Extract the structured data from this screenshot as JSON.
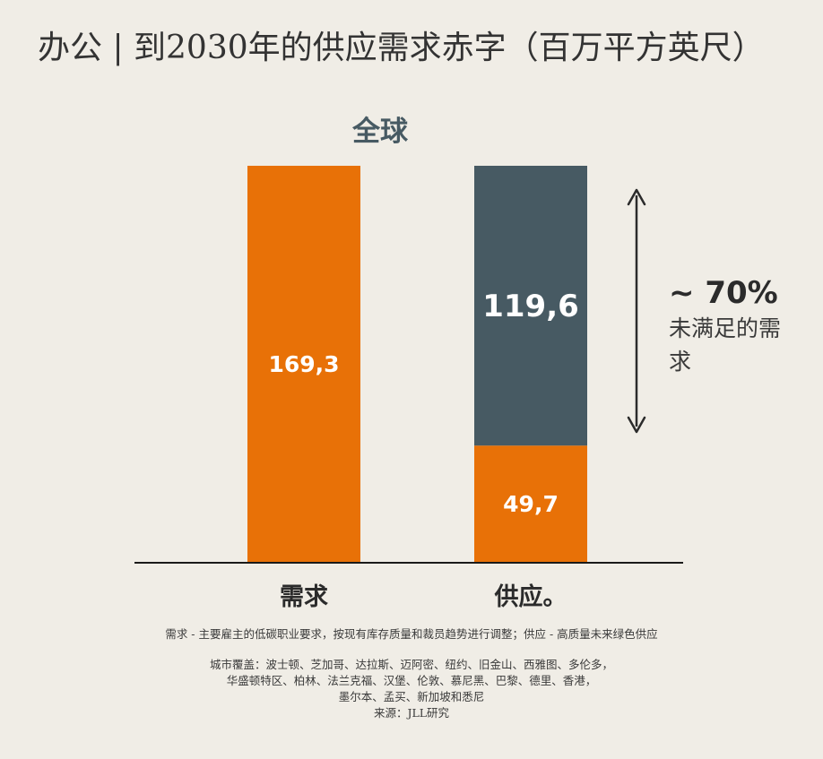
{
  "title": "办公 | 到2030年的供应需求赤字（百万平方英尺）",
  "chart_data": {
    "type": "bar",
    "subtitle": "全球",
    "categories": [
      "需求",
      "供应。"
    ],
    "series": [
      {
        "name": "",
        "values": [
          169.3,
          49.7
        ],
        "labels": [
          "169,3",
          "49,7"
        ],
        "color": "#e87107"
      },
      {
        "name": "",
        "values": [
          0,
          119.6
        ],
        "labels": [
          "",
          "119,6"
        ],
        "color": "#475a63"
      }
    ],
    "ylim": [
      0,
      169.3
    ],
    "grid": false,
    "annotation": {
      "value": "~ 70%",
      "text": "未满足的需求"
    }
  },
  "footnote": "需求 - 主要雇主的低碳职业要求，按现有库存质量和裁员趋势进行调整；供应 - 高质量未来绿色供应",
  "coverage_lines": [
    "城市覆盖：波士顿、芝加哥、达拉斯、迈阿密、纽约、旧金山、西雅图、多伦多，",
    "华盛顿特区、柏林、法兰克福、汉堡、伦敦、慕尼黑、巴黎、德里、香港，",
    "墨尔本、孟买、新加坡和悉尼"
  ],
  "source": "来源：JLL研究"
}
